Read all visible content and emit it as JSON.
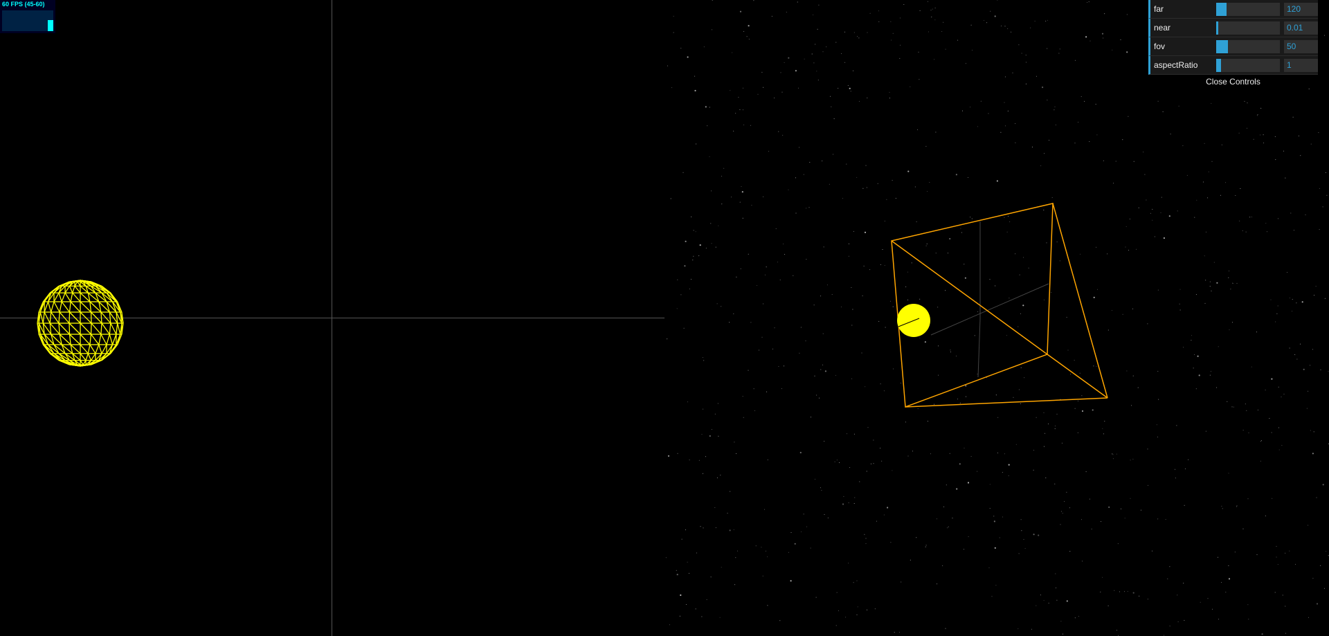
{
  "stats": {
    "fps_text": "60 FPS (45-60)",
    "fps_color": "#00ffff",
    "background": "#000022",
    "bar_fill_fraction": 0.55
  },
  "controls": {
    "rows": [
      {
        "label": "far",
        "value": "120",
        "slider_fraction": 0.16
      },
      {
        "label": "near",
        "value": "0.01",
        "slider_fraction": 0.0
      },
      {
        "label": "fov",
        "value": "50",
        "slider_fraction": 0.18
      },
      {
        "label": "aspectRatio",
        "value": "1",
        "slider_fraction": 0.08
      }
    ],
    "close_label": "Close Controls",
    "accent_color": "#2fa1d6"
  },
  "scene": {
    "sphere_wire_color": "#ffff00",
    "frustum_color": "#ffa500",
    "axis_color": "#555555",
    "background": "#000000",
    "star_color": "#888888"
  }
}
